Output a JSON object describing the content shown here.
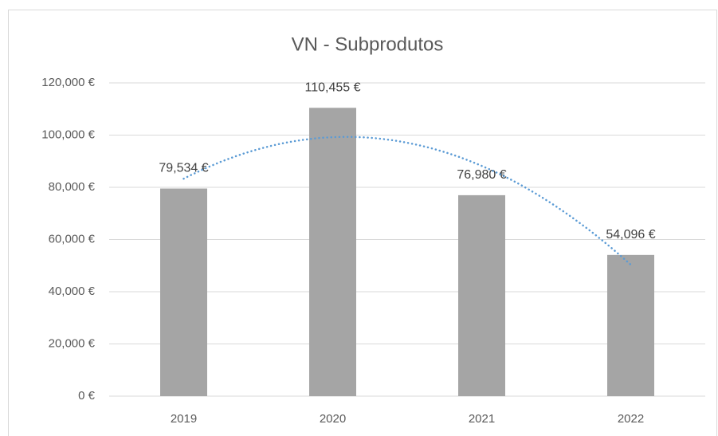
{
  "chart_data": {
    "type": "bar",
    "title": "VN - Subprodutos",
    "categories": [
      "2019",
      "2020",
      "2021",
      "2022"
    ],
    "values": [
      79534,
      110455,
      76980,
      54096
    ],
    "value_labels": [
      "79,534 €",
      "110,455 €",
      "76,980 €",
      "54,096 €"
    ],
    "color": "#a5a5a5",
    "ylim": [
      0,
      120000
    ],
    "yticks": [
      {
        "value": 0,
        "label": "0 €"
      },
      {
        "value": 20000,
        "label": "20,000 €"
      },
      {
        "value": 40000,
        "label": "40,000 €"
      },
      {
        "value": 60000,
        "label": "60,000 €"
      },
      {
        "value": 80000,
        "label": "80,000 €"
      },
      {
        "value": 100000,
        "label": "100,000 €"
      },
      {
        "value": 120000,
        "label": "120,000 €"
      }
    ],
    "grid": true,
    "trendline": {
      "type": "polynomial",
      "order": 2,
      "color": "#5b9bd5"
    }
  }
}
